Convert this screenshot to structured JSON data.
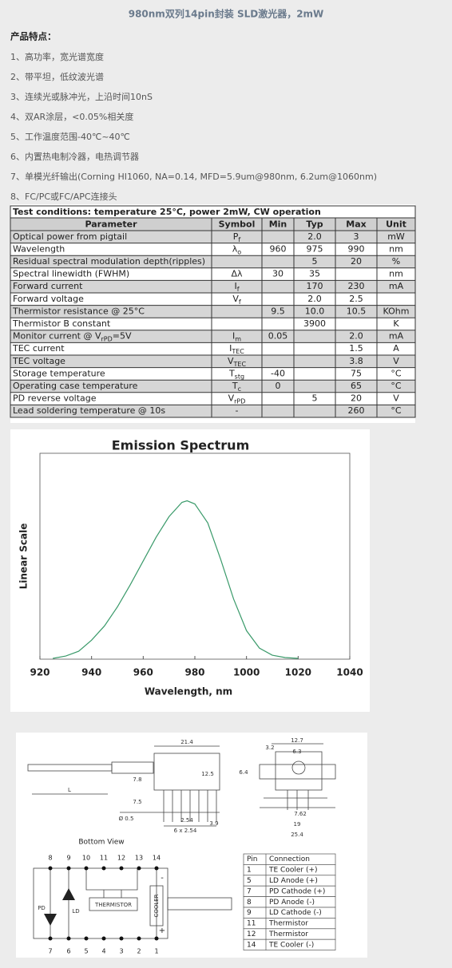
{
  "header": {
    "title": "980nm双列14pin封装 SLD激光器，2mW"
  },
  "features": {
    "heading": "产品特点：",
    "items": [
      "1、高功率，宽光谱宽度",
      "2、带平坦，低纹波光谱",
      "3、连续光或脉冲光，上沿时间10nS",
      "4、双AR涂层，<0.05%相关度",
      "5、工作温度范围-40℃~40℃",
      "6、内置热电制冷器，电热调节器",
      "7、单模光纤输出(Corning HI1060, NA=0.14, MFD=5.9um@980nm, 6.2um@1060nm)",
      "8、FC/PC或FC/APC连接头"
    ]
  },
  "specs": {
    "conditions": "Test conditions: temperature 25°C, power 2mW, CW operation",
    "columns": [
      "Parameter",
      "Symbol",
      "Min",
      "Typ",
      "Max",
      "Unit"
    ],
    "rows": [
      [
        "Optical power from pigtail",
        {
          "base": "P",
          "sub": "f"
        },
        null,
        "2.0",
        "3",
        "mW"
      ],
      [
        "Wavelength",
        {
          "base": "λ",
          "sub": "o"
        },
        "960",
        "975",
        "990",
        "nm"
      ],
      [
        "Residual spectral modulation depth(ripples)",
        null,
        null,
        "5",
        "20",
        "%"
      ],
      [
        "Spectral linewidth (FWHM)",
        "Δλ",
        "30",
        "35",
        null,
        "nm"
      ],
      [
        "Forward current",
        {
          "base": "I",
          "sub": "f"
        },
        null,
        "170",
        "230",
        "mA"
      ],
      [
        "Forward voltage",
        {
          "base": "V",
          "sub": "f"
        },
        null,
        "2.0",
        "2.5",
        null
      ],
      [
        "Thermistor resistance @ 25°C",
        null,
        "9.5",
        "10.0",
        "10.5",
        "KOhm"
      ],
      [
        "Thermistor B constant",
        null,
        null,
        "3900",
        null,
        "K"
      ],
      [
        {
          "base": "Monitor current @ V",
          "sub": "rPD",
          "tail": "=5V"
        },
        {
          "base": "I",
          "sub": "m"
        },
        "0.05",
        null,
        "2.0",
        "mA"
      ],
      [
        "TEC current",
        {
          "base": "I",
          "sub": "TEC"
        },
        null,
        null,
        "1.5",
        "A"
      ],
      [
        "TEC voltage",
        {
          "base": "V",
          "sub": "TEC"
        },
        null,
        null,
        "3.8",
        "V"
      ],
      [
        "Storage temperature",
        {
          "base": "T",
          "sub": "stg"
        },
        "-40",
        null,
        "75",
        "°C"
      ],
      [
        "Operating case temperature",
        {
          "base": "T",
          "sub": "c"
        },
        "0",
        null,
        "65",
        "°C"
      ],
      [
        "PD reverse voltage",
        {
          "base": "V",
          "sub": "rPD"
        },
        null,
        "5",
        "20",
        "V"
      ],
      [
        "Lead soldering temperature @ 10s",
        "-",
        null,
        null,
        "260",
        "°C"
      ]
    ]
  },
  "chart_data": {
    "type": "line",
    "title": "Emission Spectrum",
    "x_label": "Wavelength, nm",
    "y_label": "Linear Scale",
    "x": [
      925,
      930,
      935,
      940,
      945,
      950,
      955,
      960,
      965,
      970,
      975,
      977,
      980,
      985,
      990,
      995,
      1000,
      1005,
      1010,
      1015,
      1020
    ],
    "series": [
      {
        "color": "#3a9a6a",
        "values": [
          0.005,
          0.02,
          0.05,
          0.12,
          0.21,
          0.33,
          0.47,
          0.62,
          0.77,
          0.9,
          0.99,
          1.0,
          0.98,
          0.86,
          0.63,
          0.38,
          0.18,
          0.07,
          0.025,
          0.01,
          0.005
        ]
      }
    ],
    "xlim": [
      920,
      1040
    ],
    "xticks": [
      920,
      940,
      960,
      980,
      1000,
      1020,
      1040
    ],
    "ylim": [
      0,
      1.3
    ]
  },
  "drawing": {
    "labels": [
      "21.4",
      "12.5",
      "7.8",
      "L",
      "7.5",
      "Ø 0.5",
      "2.54",
      "6 x 2.54",
      "3.9",
      "12.7",
      "3.2",
      "6.3",
      "6.4",
      "7.62",
      "19",
      "25.4"
    ]
  },
  "pinout": {
    "title": "Bottom View",
    "top_pins": [
      "8",
      "9",
      "10",
      "11",
      "12",
      "13",
      "14"
    ],
    "bottom_pins": [
      "7",
      "6",
      "5",
      "4",
      "3",
      "2",
      "1"
    ],
    "parts": {
      "pd": "PD",
      "ld": "LD",
      "thermistor": "THERMISTOR",
      "cooler": "COOLER",
      "minus": "-",
      "plus": "+"
    },
    "table": {
      "columns": [
        "Pin",
        "Connection"
      ],
      "rows": [
        [
          "1",
          "TE Cooler (+)"
        ],
        [
          "5",
          "LD Anode (+)"
        ],
        [
          "7",
          "PD Cathode (+)"
        ],
        [
          "8",
          "PD Anode (-)"
        ],
        [
          "9",
          "LD Cathode (-)"
        ],
        [
          "11",
          "Thermistor"
        ],
        [
          "12",
          "Thermistor"
        ],
        [
          "14",
          "TE Cooler (-)"
        ]
      ]
    }
  }
}
